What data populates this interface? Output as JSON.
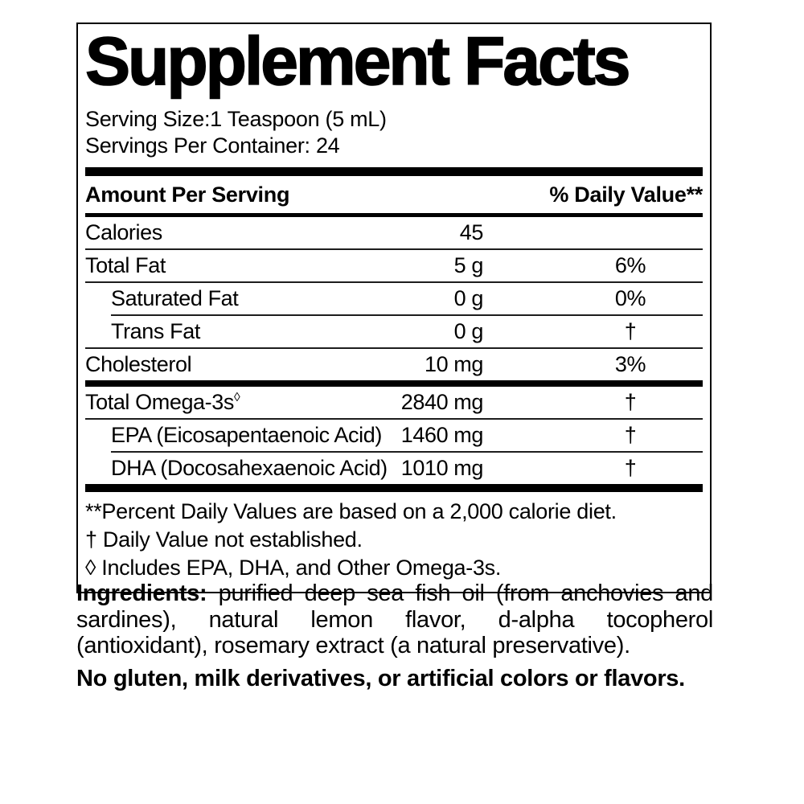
{
  "colors": {
    "text": "#000000",
    "background": "#ffffff",
    "rule": "#1d1d1d"
  },
  "label": {
    "title": "Supplement Facts",
    "serving_size": "Serving Size:1 Teaspoon (5 mL)",
    "servings_per_container": "Servings Per Container: 24",
    "header": {
      "amount": "Amount Per Serving",
      "daily_value": "% Daily Value**"
    },
    "rows": [
      {
        "name": "Calories",
        "amount": "45",
        "dv": ""
      },
      {
        "name": "Total Fat",
        "amount": "5 g",
        "dv": "6%"
      },
      {
        "name": "Saturated Fat",
        "amount": "0 g",
        "dv": "0%"
      },
      {
        "name": "Trans Fat",
        "amount": "0 g",
        "dv": "†"
      },
      {
        "name": "Cholesterol",
        "amount": "10 mg",
        "dv": "3%"
      },
      {
        "name": "Total Omega-3s",
        "sup": "◊",
        "amount": "2840 mg",
        "dv": "†"
      },
      {
        "name": "EPA (Eicosapentaenoic Acid)",
        "amount": "1460 mg",
        "dv": "†"
      },
      {
        "name": "DHA (Docosahexaenoic Acid)",
        "amount": "1010 mg",
        "dv": "†"
      }
    ],
    "footnotes": [
      "**Percent Daily Values are based on a 2,000 calorie diet.",
      "† Daily Value not established.",
      "◊ Includes EPA, DHA, and Other Omega-3s."
    ],
    "ingredients_label": "Ingredients:",
    "ingredients_text": "purified deep sea fish oil (from anchovies and sardines), natural lemon flavor, d-alpha tocopherol (antioxidant), rosemary extract (a natural preservative).",
    "allergen_statement": "No gluten, milk derivatives, or artificial colors or flavors."
  }
}
